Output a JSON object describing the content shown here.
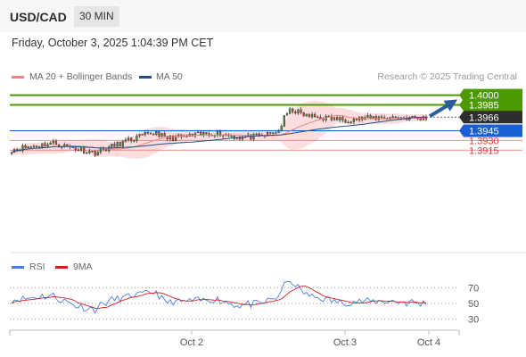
{
  "header": {
    "pair": "USD/CAD",
    "timeframe": "30 MIN"
  },
  "datetime": "Friday, October 3, 2025 1:04:39 PM CET",
  "legend": {
    "items": [
      {
        "label": "MA 20 + Bollinger Bands",
        "color": "#f08080"
      },
      {
        "label": "MA 50",
        "color": "#1f4e8c"
      }
    ],
    "credit": "Research © 2025 Trading Central"
  },
  "colors": {
    "resistance": "#4c9a00",
    "support": "#1a5fd1",
    "red_level": "#ef8a8a",
    "current": "#2e2e2e",
    "bollinger": "#fbd3d3",
    "ma20": "#f08080",
    "ma50": "#1f4e8c",
    "arrow": "#2d5c9a",
    "candle_up": "#4a8a3a",
    "candle_down": "#c84a3a",
    "rsi": "#4a7fd6",
    "rsi_ma": "#d62020"
  },
  "chart_data": [
    {
      "type": "candlestick",
      "title": "USD/CAD 30 MIN",
      "ylim": [
        1.3905,
        1.4005
      ],
      "x_ticks": [
        "Oct 2",
        "Oct 3",
        "Oct 4"
      ],
      "levels": [
        {
          "value": 1.4,
          "label": "1.4000",
          "kind": "resistance"
        },
        {
          "value": 1.3985,
          "label": "1.3985",
          "kind": "resistance"
        },
        {
          "value": 1.3966,
          "label": "1.3966",
          "kind": "current"
        },
        {
          "value": 1.3945,
          "label": "1.3945",
          "kind": "support"
        },
        {
          "value": 1.393,
          "label": "1.3930",
          "kind": "red_level"
        },
        {
          "value": 1.3915,
          "label": "1.3915",
          "kind": "red_level"
        }
      ],
      "key_points": [
        {
          "t": 0,
          "p": 1.3916
        },
        {
          "t": 0.1,
          "p": 1.3926
        },
        {
          "t": 0.2,
          "p": 1.3911
        },
        {
          "t": 0.3,
          "p": 1.3934
        },
        {
          "t": 0.35,
          "p": 1.3943
        },
        {
          "t": 0.37,
          "p": 1.3933
        },
        {
          "t": 0.42,
          "p": 1.3936
        },
        {
          "t": 0.49,
          "p": 1.3942
        },
        {
          "t": 0.55,
          "p": 1.3935
        },
        {
          "t": 0.6,
          "p": 1.3936
        },
        {
          "t": 0.645,
          "p": 1.3945
        },
        {
          "t": 0.66,
          "p": 1.3968
        },
        {
          "t": 0.675,
          "p": 1.3978
        },
        {
          "t": 0.71,
          "p": 1.3968
        },
        {
          "t": 0.8,
          "p": 1.3962
        },
        {
          "t": 0.9,
          "p": 1.3966
        },
        {
          "t": 1.0,
          "p": 1.3964
        }
      ],
      "projection": {
        "from": 1.3966,
        "to": 1.4
      }
    },
    {
      "type": "line",
      "title": "RSI",
      "series": [
        {
          "name": "RSI"
        },
        {
          "name": "9MA"
        }
      ],
      "ylim": [
        20,
        80
      ],
      "y_ticks": [
        70,
        50,
        30
      ]
    }
  ]
}
